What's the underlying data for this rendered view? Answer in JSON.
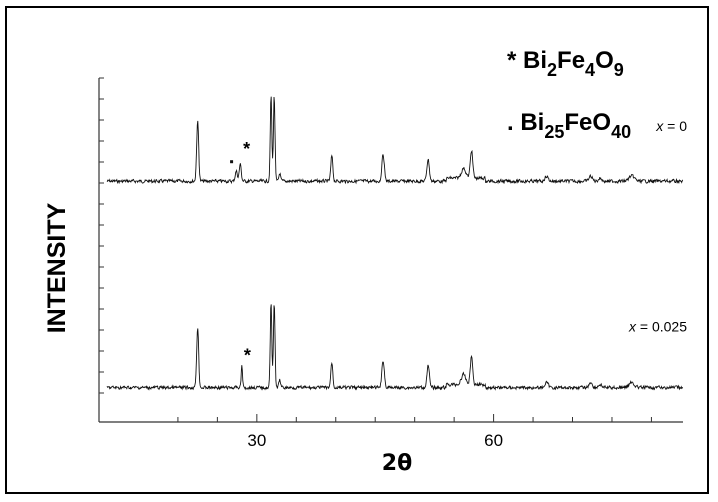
{
  "chart_data": {
    "type": "line",
    "xlabel_main": "2",
    "xlabel_theta": "θ",
    "ylabel": "INTENSITY",
    "xlim": [
      10,
      84
    ],
    "x_ticks": [
      30,
      60
    ],
    "legend": [
      {
        "marker": "*",
        "formula": [
          [
            "Bi",
            false
          ],
          [
            "2",
            true
          ],
          [
            "Fe",
            false
          ],
          [
            "4",
            true
          ],
          [
            "O",
            false
          ],
          [
            "9",
            true
          ]
        ]
      },
      {
        "marker": ".",
        "formula": [
          [
            "Bi",
            false
          ],
          [
            "25",
            true
          ],
          [
            "FeO",
            false
          ],
          [
            "40",
            true
          ]
        ]
      }
    ],
    "peaks_common": [
      {
        "x": 22.5,
        "h": 60,
        "w": 0.18
      },
      {
        "x": 31.8,
        "h": 85,
        "w": 0.14
      },
      {
        "x": 32.2,
        "h": 85,
        "w": 0.14
      },
      {
        "x": 32.9,
        "h": 8,
        "w": 0.15
      },
      {
        "x": 39.5,
        "h": 25,
        "w": 0.18
      },
      {
        "x": 46.0,
        "h": 27,
        "w": 0.22
      },
      {
        "x": 51.7,
        "h": 22,
        "w": 0.22
      },
      {
        "x": 56.2,
        "h": 10,
        "w": 0.4
      },
      {
        "x": 57.2,
        "h": 28,
        "w": 0.22
      },
      {
        "x": 66.7,
        "h": 5,
        "w": 0.3
      },
      {
        "x": 72.3,
        "h": 5,
        "w": 0.3
      },
      {
        "x": 73.5,
        "h": 3,
        "w": 0.3
      },
      {
        "x": 77.5,
        "h": 5,
        "w": 0.5
      }
    ],
    "series": [
      {
        "name": "x = 0",
        "baseline_frac": 0.7,
        "extra_peaks": [
          {
            "x": 27.4,
            "h": 10,
            "w": 0.2
          },
          {
            "x": 27.9,
            "h": 17,
            "w": 0.18
          }
        ],
        "annotations": [
          {
            "text": "*",
            "x": 28.7
          },
          {
            "text": ".",
            "x": 26.8
          }
        ]
      },
      {
        "name": "x = 0.025",
        "baseline_frac": 0.1,
        "extra_peaks": [
          {
            "x": 28.1,
            "h": 22,
            "w": 0.12
          }
        ],
        "annotations": [
          {
            "text": "*",
            "x": 28.8
          }
        ]
      }
    ]
  }
}
